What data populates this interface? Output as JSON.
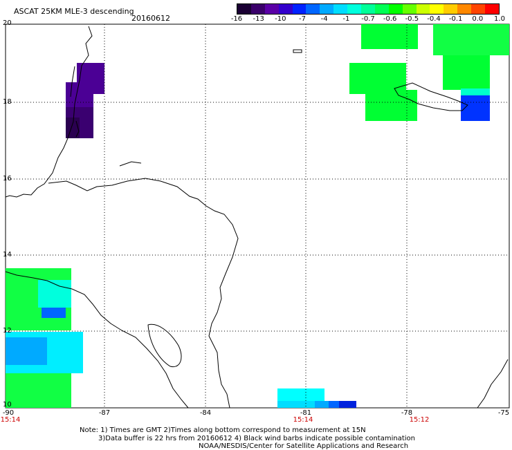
{
  "title": "ASCAT 25KM MLE-3 descending",
  "date": "20160612",
  "colorbar": {
    "colors": [
      "#1a0033",
      "#3a006a",
      "#5a00a6",
      "#3300cc",
      "#0022ff",
      "#0066ff",
      "#00aaff",
      "#00ddff",
      "#00ffdd",
      "#00ff99",
      "#00ff55",
      "#00ff00",
      "#66ff00",
      "#ccff00",
      "#ffff00",
      "#ffcc00",
      "#ff8800",
      "#ff4400",
      "#ff0000"
    ],
    "ticks": [
      "-16",
      "-13",
      "-10",
      "-7",
      "-4",
      "-1",
      "-0.7",
      "-0.6",
      "-0.5",
      "-0.4",
      "-0.1",
      "0.0",
      "1.0"
    ]
  },
  "axes": {
    "lat_labels": [
      "20",
      "18",
      "16",
      "14",
      "12",
      "10"
    ],
    "lon_labels": [
      "-90",
      "-87",
      "-84",
      "-81",
      "-78",
      "-75"
    ],
    "time_labels": [
      "15:14",
      "15:14",
      "15:12"
    ]
  },
  "notes": {
    "line1": "Note: 1) Times are GMT 2)Times along bottom correspond to measurement at 15N",
    "line2": "3)Data buffer is 22 hrs from 20160612 4) Black wind barbs indicate possible contamination",
    "line3": "NOAA/NESDIS/Center for Satellite Applications and Research"
  }
}
